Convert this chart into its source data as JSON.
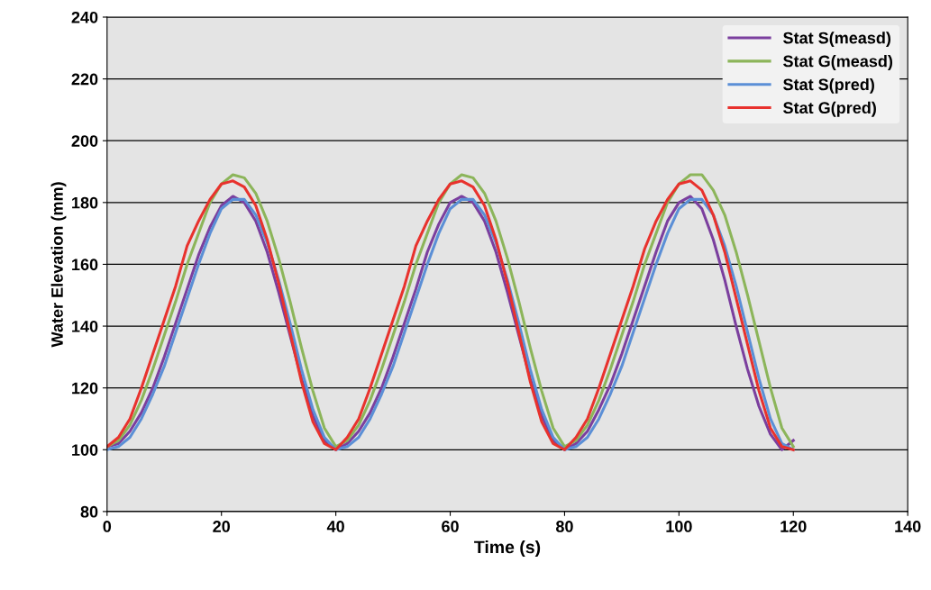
{
  "chart_data": {
    "type": "line",
    "xlabel": "Time (s)",
    "ylabel": "Water Elevation (mm)",
    "x": [
      0,
      2,
      4,
      6,
      8,
      10,
      12,
      14,
      16,
      18,
      20,
      22,
      24,
      26,
      28,
      30,
      32,
      34,
      36,
      38,
      40,
      42,
      44,
      46,
      48,
      50,
      52,
      54,
      56,
      58,
      60,
      62,
      64,
      66,
      68,
      70,
      72,
      74,
      76,
      78,
      80,
      82,
      84,
      86,
      88,
      90,
      92,
      94,
      96,
      98,
      100,
      102,
      104,
      106,
      108,
      110,
      112,
      114,
      116,
      118,
      120
    ],
    "series": [
      {
        "name": "Stat S(measd)",
        "color": "#7b3f9e",
        "values": [
          101,
          102,
          106,
          112,
          120,
          130,
          141,
          152,
          163,
          172,
          179,
          182,
          180,
          174,
          164,
          151,
          137,
          123,
          111,
          103,
          100,
          102,
          106,
          112,
          120,
          130,
          141,
          152,
          164,
          173,
          180,
          182,
          180,
          174,
          164,
          151,
          137,
          123,
          111,
          103,
          100,
          102,
          106,
          113,
          121,
          131,
          142,
          153,
          164,
          174,
          180,
          182,
          178,
          168,
          155,
          140,
          126,
          114,
          105,
          100,
          103
        ]
      },
      {
        "name": "Stat G(measd)",
        "color": "#8cb55a",
        "values": [
          101,
          103,
          108,
          116,
          126,
          137,
          148,
          160,
          170,
          180,
          186,
          189,
          188,
          183,
          174,
          162,
          148,
          133,
          119,
          107,
          101,
          103,
          108,
          116,
          126,
          137,
          148,
          160,
          170,
          180,
          186,
          189,
          188,
          183,
          174,
          162,
          148,
          133,
          119,
          107,
          101,
          103,
          108,
          116,
          126,
          137,
          148,
          160,
          170,
          180,
          186,
          189,
          189,
          184,
          176,
          164,
          150,
          135,
          120,
          107,
          101
        ]
      },
      {
        "name": "Stat S(pred)",
        "color": "#5b8fd6",
        "values": [
          100,
          101,
          104,
          110,
          118,
          127,
          138,
          149,
          160,
          170,
          178,
          181,
          181,
          176,
          167,
          155,
          141,
          126,
          113,
          104,
          100,
          101,
          104,
          110,
          118,
          127,
          138,
          149,
          160,
          170,
          178,
          181,
          181,
          176,
          167,
          155,
          141,
          126,
          113,
          104,
          100,
          101,
          104,
          110,
          118,
          127,
          138,
          149,
          160,
          170,
          178,
          181,
          181,
          176,
          166,
          153,
          138,
          123,
          110,
          102,
          100
        ]
      },
      {
        "name": "Stat G(pred)",
        "color": "#e8322d",
        "values": [
          101,
          104,
          110,
          120,
          131,
          142,
          153,
          166,
          174,
          181,
          186,
          187,
          185,
          179,
          168,
          154,
          138,
          122,
          109,
          102,
          100,
          104,
          110,
          120,
          131,
          142,
          153,
          166,
          174,
          181,
          186,
          187,
          185,
          179,
          168,
          154,
          138,
          122,
          109,
          102,
          100,
          104,
          110,
          120,
          131,
          142,
          153,
          165,
          174,
          181,
          186,
          187,
          184,
          176,
          164,
          149,
          134,
          119,
          107,
          101,
          100
        ]
      }
    ],
    "xlim": [
      0,
      140
    ],
    "xticks": [
      0,
      20,
      40,
      60,
      80,
      100,
      120,
      140
    ],
    "ylim": [
      80,
      240
    ],
    "yticks": [
      80,
      100,
      120,
      140,
      160,
      180,
      200,
      220,
      240
    ],
    "grid": "y",
    "legend": "top right",
    "marker": "none",
    "line_style": "solid"
  }
}
